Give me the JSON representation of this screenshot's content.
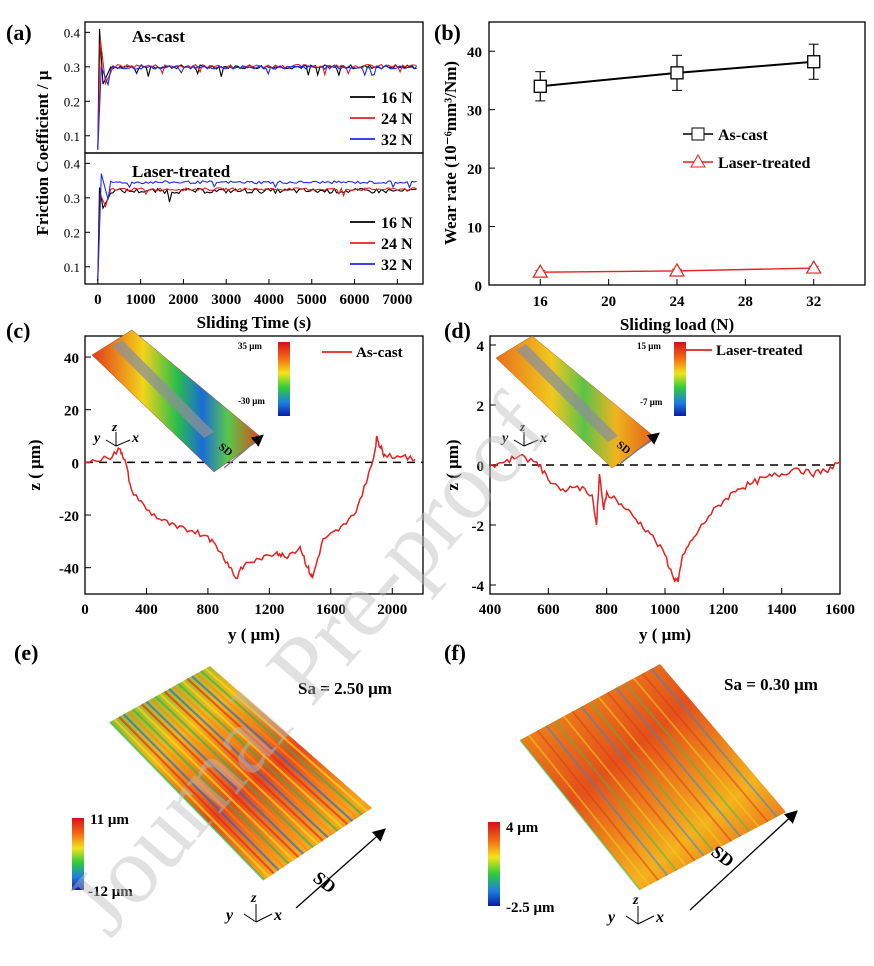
{
  "figure": {
    "watermark": "Journal Pre-proof"
  },
  "chart_data": [
    {
      "panel": "(a)",
      "type": "line",
      "title": "",
      "xlabel": "Sliding Time (s)",
      "ylabel": "Friction Coefficient / μ",
      "xlim": [
        -300,
        7600
      ],
      "xticks": [
        0,
        1000,
        2000,
        3000,
        4000,
        5000,
        6000,
        7000
      ],
      "subplots": [
        {
          "name": "As-cast",
          "ylim": [
            0.05,
            0.43
          ],
          "yticks": [
            0.1,
            0.2,
            0.3,
            0.4
          ],
          "series": [
            {
              "name": "16 N",
              "color": "#000000",
              "peak": 0.41,
              "steady": 0.3,
              "amp": 0.006
            },
            {
              "name": "24 N",
              "color": "#e8201f",
              "peak": 0.38,
              "steady": 0.302,
              "amp": 0.005
            },
            {
              "name": "32 N",
              "color": "#1f2bea",
              "peak": 0.3,
              "steady": 0.298,
              "amp": 0.005
            }
          ]
        },
        {
          "name": "Laser-treated",
          "ylim": [
            0.05,
            0.43
          ],
          "yticks": [
            0.1,
            0.2,
            0.3,
            0.4
          ],
          "series": [
            {
              "name": "16 N",
              "color": "#000000",
              "peak": 0.33,
              "steady": 0.32,
              "amp": 0.007
            },
            {
              "name": "24 N",
              "color": "#e8201f",
              "peak": 0.31,
              "steady": 0.325,
              "amp": 0.004
            },
            {
              "name": "32 N",
              "color": "#1f2bea",
              "peak": 0.37,
              "steady": 0.345,
              "amp": 0.004
            }
          ]
        }
      ]
    },
    {
      "panel": "(b)",
      "type": "line",
      "title": "",
      "xlabel": "Sliding load (N)",
      "ylabel": "Wear rate (10⁻⁶mm³/Nm)",
      "xlim": [
        13,
        35
      ],
      "ylim": [
        0,
        45
      ],
      "xticks": [
        16,
        20,
        24,
        28,
        32
      ],
      "yticks": [
        0,
        10,
        20,
        30,
        40
      ],
      "series": [
        {
          "name": "As-cast",
          "color": "#000000",
          "marker": "square",
          "x": [
            16,
            24,
            32
          ],
          "y": [
            34,
            36.3,
            38.2
          ],
          "err": [
            2.5,
            3.0,
            3.0
          ]
        },
        {
          "name": "Laser-treated",
          "color": "#e8201f",
          "marker": "triangle",
          "x": [
            16,
            24,
            32
          ],
          "y": [
            2.2,
            2.4,
            2.9
          ],
          "err": [
            0.3,
            0.3,
            0.3
          ]
        }
      ]
    },
    {
      "panel": "(c)",
      "type": "line",
      "title": "",
      "xlabel": "y ( μm)",
      "ylabel": "z ( μm)",
      "xlim": [
        0,
        2200
      ],
      "ylim": [
        -50,
        48
      ],
      "xticks": [
        0,
        400,
        800,
        1200,
        1600,
        2000
      ],
      "yticks": [
        -40,
        -20,
        0,
        20,
        40
      ],
      "series": [
        {
          "name": "As-cast",
          "color": "#e8201f",
          "x": [
            0,
            150,
            230,
            260,
            300,
            400,
            500,
            600,
            700,
            800,
            880,
            950,
            980,
            1050,
            1150,
            1250,
            1300,
            1400,
            1450,
            1480,
            1550,
            1650,
            1750,
            1830,
            1880,
            1900,
            1920,
            1950,
            2050,
            2150
          ],
          "y": [
            0,
            1.5,
            5,
            1,
            -10,
            -18,
            -22,
            -25,
            -26,
            -28,
            -34,
            -40,
            -44,
            -38,
            -37,
            -34,
            -36,
            -32,
            -40,
            -44,
            -29,
            -26,
            -20,
            -8,
            2,
            10,
            6,
            3,
            2,
            1
          ]
        }
      ],
      "colorbar": {
        "max": "35 μm",
        "min": "-30 μm"
      },
      "direction": "SD"
    },
    {
      "panel": "(d)",
      "type": "line",
      "title": "",
      "xlabel": "y ( μm)",
      "ylabel": "z ( μm)",
      "xlim": [
        400,
        1600
      ],
      "ylim": [
        -4.3,
        4.3
      ],
      "xticks": [
        400,
        600,
        800,
        1000,
        1200,
        1400,
        1600
      ],
      "yticks": [
        -4,
        -2,
        0,
        2,
        4
      ],
      "series": [
        {
          "name": "Laser-treated",
          "color": "#e8201f",
          "x": [
            400,
            450,
            500,
            560,
            600,
            650,
            700,
            750,
            765,
            775,
            790,
            800,
            850,
            900,
            950,
            1000,
            1030,
            1045,
            1060,
            1100,
            1150,
            1200,
            1250,
            1300,
            1350,
            1400,
            1450,
            1500,
            1550,
            1600
          ],
          "y": [
            0,
            0.1,
            0.3,
            0.1,
            -0.5,
            -0.8,
            -0.7,
            -1.0,
            -2.0,
            -0.3,
            -1.5,
            -0.9,
            -1.3,
            -1.8,
            -2.3,
            -3.0,
            -3.8,
            -3.9,
            -3.0,
            -2.4,
            -1.7,
            -1.2,
            -0.8,
            -0.6,
            -0.4,
            -0.3,
            -0.1,
            -0.3,
            -0.2,
            0.1
          ]
        }
      ],
      "colorbar": {
        "max": "15 μm",
        "min": "-7 μm"
      },
      "direction": "SD"
    },
    {
      "panel": "(e)",
      "type": "heatmap",
      "title": "Sa = 2.50 μm",
      "colorbar": {
        "max": "11 μm",
        "min": "-12 μm"
      },
      "direction": "SD"
    },
    {
      "panel": "(f)",
      "type": "heatmap",
      "title": "Sa = 0.30 μm",
      "colorbar": {
        "max": "4 μm",
        "min": "-2.5 μm"
      },
      "direction": "SD"
    }
  ],
  "axes_glyphs": {
    "y": "y",
    "z": "z",
    "x": "x"
  }
}
